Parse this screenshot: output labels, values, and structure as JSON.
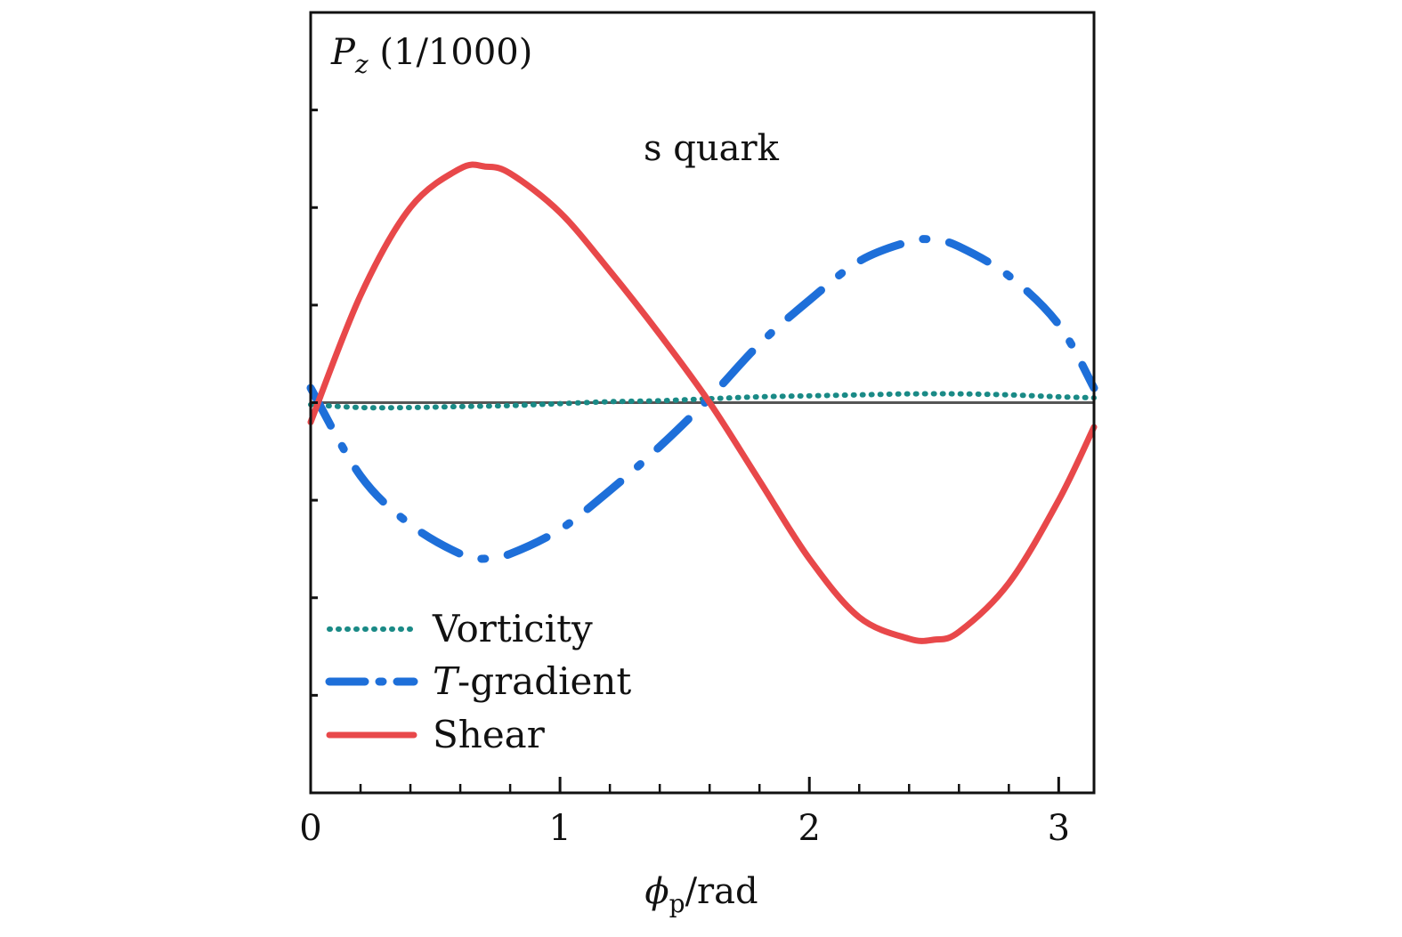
{
  "chart_data": {
    "type": "line",
    "title": "",
    "ylabel": "P",
    "ylabel_sub": "z",
    "ylabel_unit": " (1/1000)",
    "xlabel": "ϕ",
    "xlabel_sub": "p",
    "xlabel_unit": "/rad",
    "annotation": "s quark",
    "xlim": [
      0,
      3.14159
    ],
    "ylim": [
      -4,
      4
    ],
    "x_ticks": [
      0,
      1,
      2,
      3
    ],
    "x_tick_labels": [
      "0",
      "1",
      "2",
      "3"
    ],
    "x_minor_step": 0.2,
    "y_ticks": [
      -3,
      -2,
      -1,
      0,
      1,
      2,
      3
    ],
    "y_tick_labels": [],
    "zero_line": true,
    "legend_position": "lower-left",
    "legend": [
      {
        "italic_prefix": "",
        "label": "Vorticity"
      },
      {
        "italic_prefix": "T",
        "label": "-gradient"
      },
      {
        "italic_prefix": "",
        "label": "Shear"
      }
    ],
    "series": [
      {
        "name": "Vorticity",
        "style": "dotted",
        "color": "#1a8a86",
        "x": [
          0,
          0.2,
          0.4,
          0.6,
          0.8,
          1.0,
          1.2,
          1.4,
          1.6,
          1.8,
          2.0,
          2.2,
          2.4,
          2.6,
          2.8,
          3.0,
          3.14159
        ],
        "y": [
          -0.02,
          -0.05,
          -0.05,
          -0.04,
          -0.03,
          -0.01,
          0.01,
          0.02,
          0.04,
          0.06,
          0.07,
          0.08,
          0.09,
          0.09,
          0.08,
          0.06,
          0.05
        ]
      },
      {
        "name": "T-gradient",
        "style": "dash-dot",
        "color": "#1e6fd9",
        "x": [
          0,
          0.2,
          0.4,
          0.6,
          0.7,
          0.8,
          1.0,
          1.2,
          1.4,
          1.6,
          1.8,
          2.0,
          2.2,
          2.4,
          2.5,
          2.6,
          2.8,
          3.0,
          3.14159
        ],
        "y": [
          0.15,
          -0.75,
          -1.25,
          -1.55,
          -1.6,
          -1.55,
          -1.3,
          -0.9,
          -0.45,
          0.05,
          0.6,
          1.05,
          1.45,
          1.65,
          1.67,
          1.6,
          1.3,
          0.8,
          0.15
        ]
      },
      {
        "name": "Shear",
        "style": "solid",
        "color": "#e8484a",
        "x": [
          0,
          0.2,
          0.4,
          0.6,
          0.7,
          0.8,
          1.0,
          1.2,
          1.4,
          1.6,
          1.8,
          2.0,
          2.2,
          2.4,
          2.5,
          2.6,
          2.8,
          3.0,
          3.14159
        ],
        "y": [
          -0.2,
          1.1,
          2.0,
          2.4,
          2.42,
          2.35,
          1.95,
          1.35,
          0.7,
          0.0,
          -0.8,
          -1.6,
          -2.2,
          -2.42,
          -2.43,
          -2.35,
          -1.85,
          -1.0,
          -0.25
        ]
      }
    ]
  }
}
